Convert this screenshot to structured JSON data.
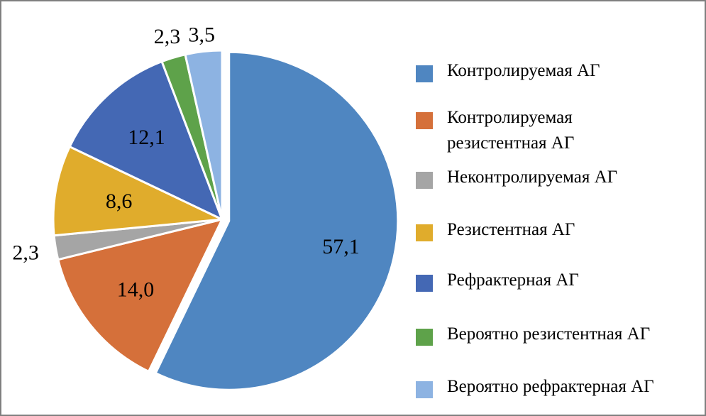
{
  "chart_data": {
    "type": "pie",
    "title": "",
    "slices": [
      {
        "name": "Контролируемая АГ",
        "value": 57.1,
        "label": "57,1",
        "color": "#4F86C1",
        "label_color": "#000000",
        "exploded": true
      },
      {
        "name": "Контролируемая\nрезистентная АГ",
        "value": 14.0,
        "label": "14,0",
        "color": "#D5703A",
        "label_color": "#000000",
        "exploded": false
      },
      {
        "name": "Неконтролируемая АГ",
        "value": 2.3,
        "label": "2,3",
        "color": "#A5A5A5",
        "label_color": "#000000",
        "exploded": false
      },
      {
        "name": "Резистентная АГ",
        "value": 8.6,
        "label": "8,6",
        "color": "#E0AC2C",
        "label_color": "#000000",
        "exploded": false
      },
      {
        "name": "Рефрактерная АГ",
        "value": 12.1,
        "label": "12,1",
        "color": "#4468B4",
        "label_color": "#ffffff",
        "exploded": false
      },
      {
        "name": "Вероятно резистентная АГ",
        "value": 2.3,
        "label": "2,3",
        "color": "#5EA24A",
        "label_color": "#000000",
        "exploded": false
      },
      {
        "name": "Вероятно рефрактерная АГ",
        "value": 3.5,
        "label": "3,5",
        "color": "#8DB3E2",
        "label_color": "#000000",
        "exploded": false
      }
    ],
    "legend_placement": "right"
  }
}
